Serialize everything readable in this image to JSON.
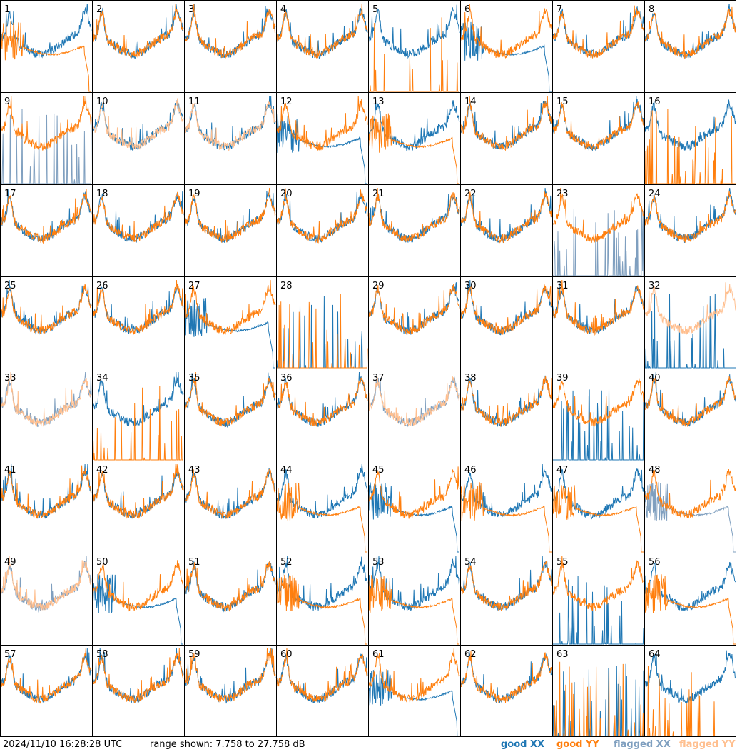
{
  "footer": {
    "timestamp": "2024/11/10 16:28:28 UTC",
    "range_text": "range shown: 7.758 to 27.758 dB"
  },
  "legend": {
    "good_xx": "good XX",
    "good_yy": "good YY",
    "flagged_xx": "flagged XX",
    "flagged_yy": "flagged YY"
  },
  "colors": {
    "good_xx": "#1f77b4",
    "good_yy": "#ff7f0e",
    "flagged_xx": "#7f9fbf",
    "flagged_yy": "#ffbf8f"
  },
  "chart_data": {
    "type": "line",
    "grid": {
      "rows": 8,
      "cols": 8
    },
    "ylim": [
      7.758,
      27.758
    ],
    "series_types": [
      "XX",
      "YY"
    ],
    "panels": [
      {
        "label": "1",
        "xx": "good",
        "yy": "good",
        "xx_shape": "normal",
        "yy_shape": "drop"
      },
      {
        "label": "2",
        "xx": "good",
        "yy": "good",
        "xx_shape": "normal",
        "yy_shape": "normal"
      },
      {
        "label": "3",
        "xx": "good",
        "yy": "good",
        "xx_shape": "normal",
        "yy_shape": "normal"
      },
      {
        "label": "4",
        "xx": "good",
        "yy": "good",
        "xx_shape": "normal",
        "yy_shape": "normal"
      },
      {
        "label": "5",
        "xx": "good",
        "yy": "good",
        "xx_shape": "normal",
        "yy_shape": "spike"
      },
      {
        "label": "6",
        "xx": "good",
        "yy": "good",
        "xx_shape": "drop",
        "yy_shape": "normal"
      },
      {
        "label": "7",
        "xx": "good",
        "yy": "good",
        "xx_shape": "normal",
        "yy_shape": "normal"
      },
      {
        "label": "8",
        "xx": "good",
        "yy": "good",
        "xx_shape": "normal",
        "yy_shape": "normal"
      },
      {
        "label": "9",
        "xx": "flagged",
        "yy": "good",
        "xx_shape": "spike",
        "yy_shape": "normal"
      },
      {
        "label": "10",
        "xx": "good",
        "yy": "flagged",
        "xx_shape": "normal",
        "yy_shape": "normal"
      },
      {
        "label": "11",
        "xx": "good",
        "yy": "flagged",
        "xx_shape": "normal",
        "yy_shape": "normal"
      },
      {
        "label": "12",
        "xx": "good",
        "yy": "good",
        "xx_shape": "drop",
        "yy_shape": "normal"
      },
      {
        "label": "13",
        "xx": "good",
        "yy": "good",
        "xx_shape": "normal",
        "yy_shape": "drop"
      },
      {
        "label": "14",
        "xx": "good",
        "yy": "good",
        "xx_shape": "normal",
        "yy_shape": "normal"
      },
      {
        "label": "15",
        "xx": "good",
        "yy": "good",
        "xx_shape": "normal",
        "yy_shape": "normal"
      },
      {
        "label": "16",
        "xx": "good",
        "yy": "good",
        "xx_shape": "normal",
        "yy_shape": "spike"
      },
      {
        "label": "17",
        "xx": "good",
        "yy": "good",
        "xx_shape": "normal",
        "yy_shape": "normal"
      },
      {
        "label": "18",
        "xx": "good",
        "yy": "good",
        "xx_shape": "normal",
        "yy_shape": "normal"
      },
      {
        "label": "19",
        "xx": "good",
        "yy": "good",
        "xx_shape": "normal",
        "yy_shape": "normal"
      },
      {
        "label": "20",
        "xx": "good",
        "yy": "good",
        "xx_shape": "normal",
        "yy_shape": "normal"
      },
      {
        "label": "21",
        "xx": "good",
        "yy": "good",
        "xx_shape": "normal",
        "yy_shape": "normal"
      },
      {
        "label": "22",
        "xx": "good",
        "yy": "good",
        "xx_shape": "normal",
        "yy_shape": "normal"
      },
      {
        "label": "23",
        "xx": "flagged",
        "yy": "good",
        "xx_shape": "spike",
        "yy_shape": "normal"
      },
      {
        "label": "24",
        "xx": "good",
        "yy": "good",
        "xx_shape": "normal",
        "yy_shape": "normal"
      },
      {
        "label": "25",
        "xx": "good",
        "yy": "good",
        "xx_shape": "normal",
        "yy_shape": "normal"
      },
      {
        "label": "26",
        "xx": "good",
        "yy": "good",
        "xx_shape": "normal",
        "yy_shape": "normal"
      },
      {
        "label": "27",
        "xx": "good",
        "yy": "good",
        "xx_shape": "drop",
        "yy_shape": "normal"
      },
      {
        "label": "28",
        "xx": "good",
        "yy": "good",
        "xx_shape": "spike",
        "yy_shape": "spike"
      },
      {
        "label": "29",
        "xx": "good",
        "yy": "good",
        "xx_shape": "normal",
        "yy_shape": "normal"
      },
      {
        "label": "30",
        "xx": "good",
        "yy": "good",
        "xx_shape": "normal",
        "yy_shape": "normal"
      },
      {
        "label": "31",
        "xx": "good",
        "yy": "good",
        "xx_shape": "normal",
        "yy_shape": "normal"
      },
      {
        "label": "32",
        "xx": "good",
        "yy": "flagged",
        "xx_shape": "spike",
        "yy_shape": "normal"
      },
      {
        "label": "33",
        "xx": "flagged",
        "yy": "flagged",
        "xx_shape": "normal",
        "yy_shape": "normal"
      },
      {
        "label": "34",
        "xx": "good",
        "yy": "good",
        "xx_shape": "normal",
        "yy_shape": "spike"
      },
      {
        "label": "35",
        "xx": "good",
        "yy": "good",
        "xx_shape": "normal",
        "yy_shape": "normal"
      },
      {
        "label": "36",
        "xx": "good",
        "yy": "good",
        "xx_shape": "normal",
        "yy_shape": "normal"
      },
      {
        "label": "37",
        "xx": "flagged",
        "yy": "flagged",
        "xx_shape": "normal",
        "yy_shape": "normal"
      },
      {
        "label": "38",
        "xx": "good",
        "yy": "good",
        "xx_shape": "normal",
        "yy_shape": "normal"
      },
      {
        "label": "39",
        "xx": "good",
        "yy": "good",
        "xx_shape": "spike",
        "yy_shape": "normal"
      },
      {
        "label": "40",
        "xx": "good",
        "yy": "good",
        "xx_shape": "normal",
        "yy_shape": "normal"
      },
      {
        "label": "41",
        "xx": "good",
        "yy": "good",
        "xx_shape": "normal",
        "yy_shape": "normal"
      },
      {
        "label": "42",
        "xx": "good",
        "yy": "good",
        "xx_shape": "normal",
        "yy_shape": "normal"
      },
      {
        "label": "43",
        "xx": "good",
        "yy": "good",
        "xx_shape": "normal",
        "yy_shape": "normal"
      },
      {
        "label": "44",
        "xx": "good",
        "yy": "good",
        "xx_shape": "normal",
        "yy_shape": "drop"
      },
      {
        "label": "45",
        "xx": "good",
        "yy": "good",
        "xx_shape": "drop",
        "yy_shape": "normal"
      },
      {
        "label": "46",
        "xx": "good",
        "yy": "good",
        "xx_shape": "normal",
        "yy_shape": "drop"
      },
      {
        "label": "47",
        "xx": "good",
        "yy": "good",
        "xx_shape": "normal",
        "yy_shape": "drop"
      },
      {
        "label": "48",
        "xx": "flagged",
        "yy": "good",
        "xx_shape": "drop",
        "yy_shape": "normal"
      },
      {
        "label": "49",
        "xx": "flagged",
        "yy": "flagged",
        "xx_shape": "normal",
        "yy_shape": "normal"
      },
      {
        "label": "50",
        "xx": "good",
        "yy": "good",
        "xx_shape": "drop",
        "yy_shape": "normal"
      },
      {
        "label": "51",
        "xx": "good",
        "yy": "good",
        "xx_shape": "normal",
        "yy_shape": "normal"
      },
      {
        "label": "52",
        "xx": "good",
        "yy": "good",
        "xx_shape": "normal",
        "yy_shape": "drop"
      },
      {
        "label": "53",
        "xx": "good",
        "yy": "good",
        "xx_shape": "normal",
        "yy_shape": "drop"
      },
      {
        "label": "54",
        "xx": "good",
        "yy": "good",
        "xx_shape": "normal",
        "yy_shape": "normal"
      },
      {
        "label": "55",
        "xx": "good",
        "yy": "good",
        "xx_shape": "spike",
        "yy_shape": "normal"
      },
      {
        "label": "56",
        "xx": "good",
        "yy": "good",
        "xx_shape": "normal",
        "yy_shape": "drop"
      },
      {
        "label": "57",
        "xx": "good",
        "yy": "good",
        "xx_shape": "normal",
        "yy_shape": "normal"
      },
      {
        "label": "58",
        "xx": "good",
        "yy": "good",
        "xx_shape": "normal",
        "yy_shape": "normal"
      },
      {
        "label": "59",
        "xx": "good",
        "yy": "good",
        "xx_shape": "normal",
        "yy_shape": "normal"
      },
      {
        "label": "60",
        "xx": "good",
        "yy": "good",
        "xx_shape": "normal",
        "yy_shape": "normal"
      },
      {
        "label": "61",
        "xx": "good",
        "yy": "good",
        "xx_shape": "drop",
        "yy_shape": "normal"
      },
      {
        "label": "62",
        "xx": "good",
        "yy": "good",
        "xx_shape": "normal",
        "yy_shape": "normal"
      },
      {
        "label": "63",
        "xx": "good",
        "yy": "good",
        "xx_shape": "spike",
        "yy_shape": "spike"
      },
      {
        "label": "64",
        "xx": "good",
        "yy": "good",
        "xx_shape": "normal",
        "yy_shape": "spike"
      }
    ]
  }
}
